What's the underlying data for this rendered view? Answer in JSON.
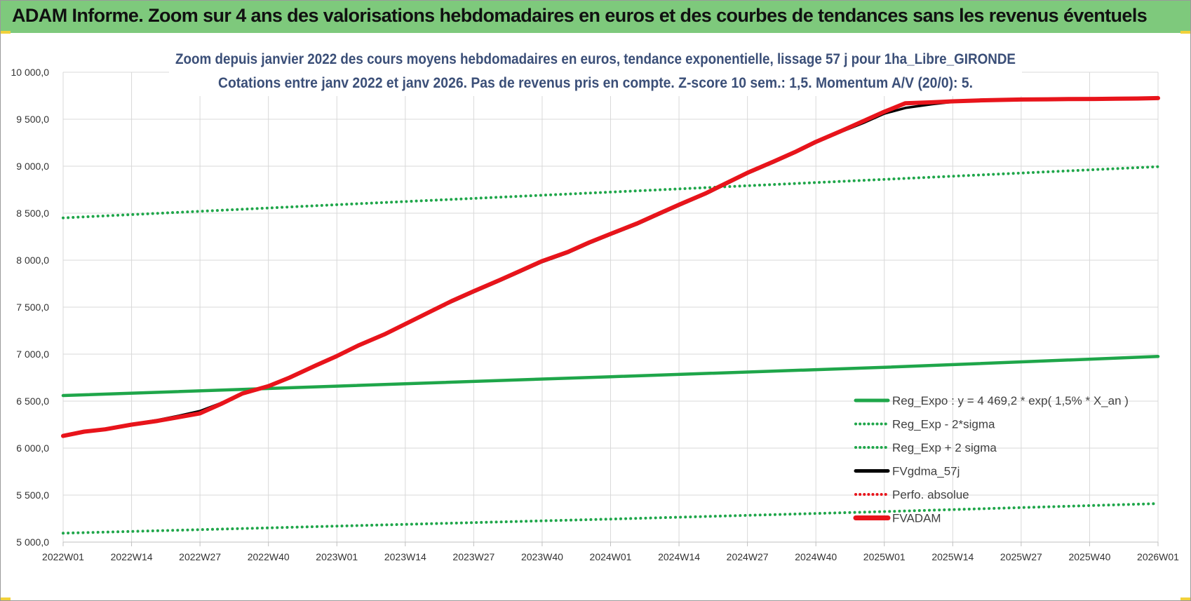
{
  "banner": {
    "title": "ADAM Informe. Zoom sur 4 ans des valorisations hebdomadaires en euros et des courbes de tendances sans les revenus éventuels",
    "color": "#7ec97c"
  },
  "chart_data": {
    "type": "line",
    "title": "Zoom depuis janvier 2022 des cours moyens hebdomadaires en euros, tendance exponentielle, lissage 57 j pour 1ha_Libre_GIRONDE",
    "subtitle": "Cotations entre janv 2022 et janv 2026. Pas de revenus pris en compte. Z-score 10 sem.: 1,5. Momentum A/V (20/0): 5.",
    "x_tick_labels": [
      "2022W01",
      "2022W14",
      "2022W27",
      "2022W40",
      "2023W01",
      "2023W14",
      "2023W27",
      "2023W40",
      "2024W01",
      "2024W14",
      "2024W27",
      "2024W40",
      "2025W01",
      "2025W14",
      "2025W27",
      "2025W40",
      "2026W01"
    ],
    "x_range_weeks": [
      0,
      208
    ],
    "ylim": [
      5000,
      10000
    ],
    "y_ticks": [
      5000,
      5500,
      6000,
      6500,
      7000,
      7500,
      8000,
      8500,
      9000,
      9500,
      10000
    ],
    "y_tick_labels": [
      "5 000,0",
      "5 500,0",
      "6 000,0",
      "6 500,0",
      "7 000,0",
      "7 500,0",
      "8 000,0",
      "8 500,0",
      "9 000,0",
      "9 500,0",
      "10 000,0"
    ],
    "grid": true,
    "legend_position": "bottom-right",
    "series": [
      {
        "name": "Reg_Expo : y = 4 469,2 * exp( 1,5% *  X_an )",
        "style": "solid",
        "color": "#1fa64a",
        "points": [
          [
            0,
            6560
          ],
          [
            52,
            6660
          ],
          [
            104,
            6760
          ],
          [
            156,
            6860
          ],
          [
            208,
            6975
          ]
        ]
      },
      {
        "name": "Reg_Exp - 2*sigma",
        "style": "dotted",
        "color": "#1fa64a",
        "points": [
          [
            0,
            5095
          ],
          [
            52,
            5170
          ],
          [
            104,
            5245
          ],
          [
            156,
            5325
          ],
          [
            208,
            5410
          ]
        ]
      },
      {
        "name": "Reg_Exp + 2 sigma",
        "style": "dotted",
        "color": "#1fa64a",
        "points": [
          [
            0,
            8450
          ],
          [
            52,
            8590
          ],
          [
            104,
            8725
          ],
          [
            156,
            8860
          ],
          [
            208,
            8995
          ]
        ]
      },
      {
        "name": "FVgdma_57j",
        "style": "solid",
        "color": "#000000",
        "points": [
          [
            0,
            6130
          ],
          [
            4,
            6175
          ],
          [
            8,
            6205
          ],
          [
            13,
            6255
          ],
          [
            18,
            6300
          ],
          [
            22,
            6345
          ],
          [
            26,
            6395
          ],
          [
            30,
            6480
          ],
          [
            34,
            6580
          ],
          [
            39,
            6660
          ],
          [
            43,
            6750
          ],
          [
            48,
            6880
          ],
          [
            52,
            6980
          ],
          [
            56,
            7090
          ],
          [
            61,
            7210
          ],
          [
            65,
            7320
          ],
          [
            70,
            7460
          ],
          [
            74,
            7560
          ],
          [
            78,
            7660
          ],
          [
            83,
            7780
          ],
          [
            87,
            7880
          ],
          [
            91,
            7980
          ],
          [
            96,
            8080
          ],
          [
            100,
            8180
          ],
          [
            104,
            8270
          ],
          [
            109,
            8380
          ],
          [
            113,
            8480
          ],
          [
            117,
            8580
          ],
          [
            122,
            8700
          ],
          [
            126,
            8810
          ],
          [
            130,
            8920
          ],
          [
            135,
            9040
          ],
          [
            139,
            9140
          ],
          [
            143,
            9250
          ],
          [
            148,
            9370
          ],
          [
            152,
            9460
          ],
          [
            156,
            9560
          ],
          [
            160,
            9620
          ],
          [
            165,
            9660
          ],
          [
            169,
            9685
          ],
          [
            174,
            9700
          ],
          [
            178,
            9710
          ],
          [
            182,
            9715
          ],
          [
            187,
            9718
          ],
          [
            191,
            9720
          ],
          [
            196,
            9720
          ],
          [
            200,
            9722
          ],
          [
            204,
            9723
          ],
          [
            208,
            9724
          ]
        ]
      },
      {
        "name": "Perfo. absolue",
        "style": "dotted",
        "color": "#e8141b",
        "points": [
          [
            0,
            6130
          ],
          [
            4,
            6175
          ],
          [
            8,
            6200
          ],
          [
            13,
            6250
          ],
          [
            18,
            6290
          ],
          [
            22,
            6330
          ],
          [
            26,
            6370
          ],
          [
            30,
            6470
          ],
          [
            34,
            6580
          ],
          [
            39,
            6660
          ],
          [
            43,
            6750
          ],
          [
            48,
            6880
          ],
          [
            52,
            6980
          ],
          [
            56,
            7090
          ],
          [
            61,
            7210
          ],
          [
            65,
            7320
          ],
          [
            70,
            7460
          ],
          [
            74,
            7570
          ],
          [
            78,
            7670
          ],
          [
            83,
            7790
          ],
          [
            87,
            7890
          ],
          [
            91,
            7990
          ],
          [
            96,
            8090
          ],
          [
            100,
            8190
          ],
          [
            104,
            8280
          ],
          [
            109,
            8390
          ],
          [
            113,
            8490
          ],
          [
            117,
            8590
          ],
          [
            122,
            8710
          ],
          [
            126,
            8820
          ],
          [
            130,
            8930
          ],
          [
            135,
            9050
          ],
          [
            139,
            9150
          ],
          [
            143,
            9260
          ],
          [
            148,
            9380
          ],
          [
            152,
            9480
          ],
          [
            156,
            9580
          ],
          [
            160,
            9670
          ],
          [
            165,
            9680
          ],
          [
            169,
            9690
          ],
          [
            174,
            9700
          ],
          [
            178,
            9705
          ],
          [
            182,
            9710
          ],
          [
            187,
            9712
          ],
          [
            191,
            9714
          ],
          [
            196,
            9716
          ],
          [
            200,
            9718
          ],
          [
            204,
            9720
          ],
          [
            208,
            9725
          ]
        ]
      },
      {
        "name": "FVADAM",
        "style": "solid",
        "color": "#e8141b",
        "points": [
          [
            0,
            6130
          ],
          [
            4,
            6175
          ],
          [
            8,
            6200
          ],
          [
            13,
            6250
          ],
          [
            18,
            6290
          ],
          [
            22,
            6330
          ],
          [
            26,
            6370
          ],
          [
            30,
            6470
          ],
          [
            34,
            6580
          ],
          [
            39,
            6660
          ],
          [
            43,
            6750
          ],
          [
            48,
            6880
          ],
          [
            52,
            6980
          ],
          [
            56,
            7090
          ],
          [
            61,
            7210
          ],
          [
            65,
            7320
          ],
          [
            70,
            7460
          ],
          [
            74,
            7570
          ],
          [
            78,
            7670
          ],
          [
            83,
            7790
          ],
          [
            87,
            7890
          ],
          [
            91,
            7990
          ],
          [
            96,
            8090
          ],
          [
            100,
            8190
          ],
          [
            104,
            8280
          ],
          [
            109,
            8390
          ],
          [
            113,
            8490
          ],
          [
            117,
            8590
          ],
          [
            122,
            8710
          ],
          [
            126,
            8820
          ],
          [
            130,
            8930
          ],
          [
            135,
            9050
          ],
          [
            139,
            9150
          ],
          [
            143,
            9260
          ],
          [
            148,
            9380
          ],
          [
            152,
            9480
          ],
          [
            156,
            9580
          ],
          [
            160,
            9670
          ],
          [
            165,
            9680
          ],
          [
            169,
            9690
          ],
          [
            174,
            9700
          ],
          [
            178,
            9705
          ],
          [
            182,
            9710
          ],
          [
            187,
            9712
          ],
          [
            191,
            9714
          ],
          [
            196,
            9716
          ],
          [
            200,
            9718
          ],
          [
            204,
            9720
          ],
          [
            208,
            9725
          ]
        ]
      }
    ]
  }
}
